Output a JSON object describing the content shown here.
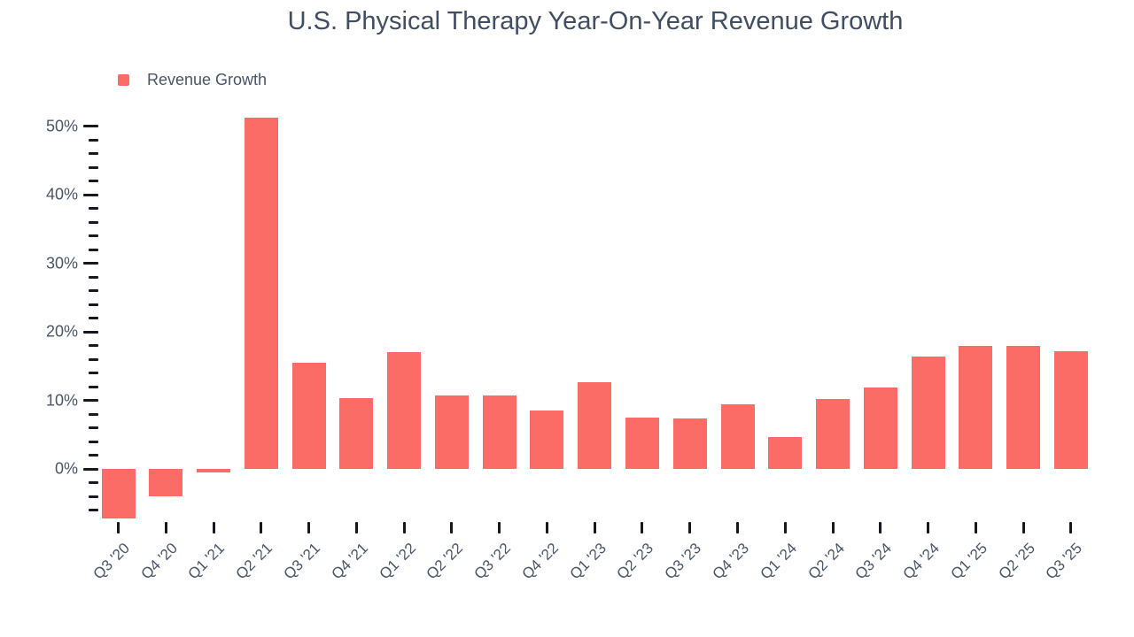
{
  "chart_data": {
    "type": "bar",
    "title": "U.S. Physical Therapy Year-On-Year Revenue Growth",
    "categories": [
      "Q3 '20",
      "Q4 '20",
      "Q1 '21",
      "Q2 '21",
      "Q3 '21",
      "Q4 '21",
      "Q1 '22",
      "Q2 '22",
      "Q3 '22",
      "Q4 '22",
      "Q1 '23",
      "Q2 '23",
      "Q3 '23",
      "Q4 '23",
      "Q1 '24",
      "Q2 '24",
      "Q3 '24",
      "Q4 '24",
      "Q1 '25",
      "Q2 '25",
      "Q3 '25"
    ],
    "series": [
      {
        "name": "Revenue Growth",
        "values": [
          -7.2,
          -3.9,
          -0.5,
          51.3,
          15.5,
          10.4,
          17.1,
          10.7,
          10.7,
          8.6,
          12.7,
          7.5,
          7.4,
          9.5,
          4.7,
          10.2,
          11.9,
          16.4,
          18.0,
          18.0,
          17.2
        ]
      }
    ],
    "xlabel": "",
    "ylabel": "",
    "y_major_tick_labels": [
      "50%",
      "40%",
      "30%",
      "20%",
      "10%",
      "0%"
    ],
    "y_major_tick_values": [
      50,
      40,
      30,
      20,
      10,
      0
    ],
    "y_minor_tick_step": 2,
    "ylim": [
      -7.5,
      53
    ],
    "grid": false,
    "legend_position": "top-left",
    "colors": {
      "bar": "#FB6C66",
      "title_text": "#414D63",
      "axis_text": "#4A5568",
      "tick": "#16181D",
      "background": "#FFFFFF"
    }
  },
  "legend": {
    "items": [
      {
        "label": "Revenue Growth",
        "color": "#FB6C66"
      }
    ]
  }
}
